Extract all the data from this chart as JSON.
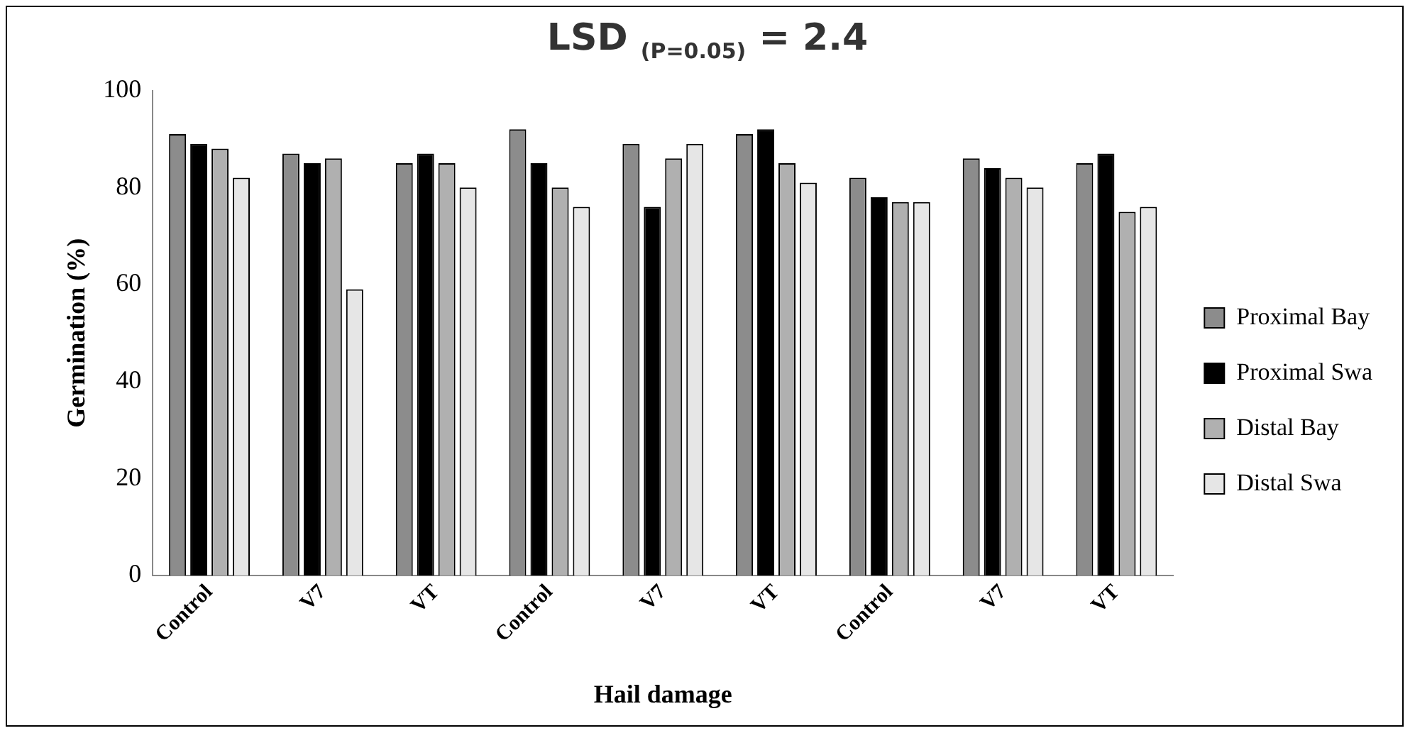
{
  "chart_data": {
    "type": "bar",
    "title": "LSD $_{(P=0.05)}$ = 2.4",
    "xlabel": "Hail damage",
    "ylabel": "Germination (%)",
    "categories": [
      "Control",
      "V7",
      "VT",
      "Control",
      "V7",
      "VT",
      "Control",
      "V7",
      "VT"
    ],
    "series": [
      {
        "name": "Proximal Bay",
        "color": "#8c8c8c",
        "values": [
          91,
          87,
          85,
          92,
          89,
          91,
          82,
          86,
          85
        ]
      },
      {
        "name": "Proximal Swa",
        "color": "#000000",
        "values": [
          89,
          85,
          87,
          85,
          76,
          92,
          78,
          84,
          87
        ]
      },
      {
        "name": "Distal Bay",
        "color": "#b0b0b0",
        "values": [
          88,
          86,
          85,
          80,
          86,
          85,
          77,
          82,
          75
        ]
      },
      {
        "name": "Distal Swa",
        "color": "#e6e6e6",
        "values": [
          82,
          59,
          80,
          76,
          89,
          81,
          77,
          80,
          76
        ]
      }
    ],
    "ylim": [
      0,
      100
    ],
    "yticks": [
      0,
      20,
      40,
      60,
      80,
      100
    ],
    "grid": false,
    "legend": "right"
  }
}
